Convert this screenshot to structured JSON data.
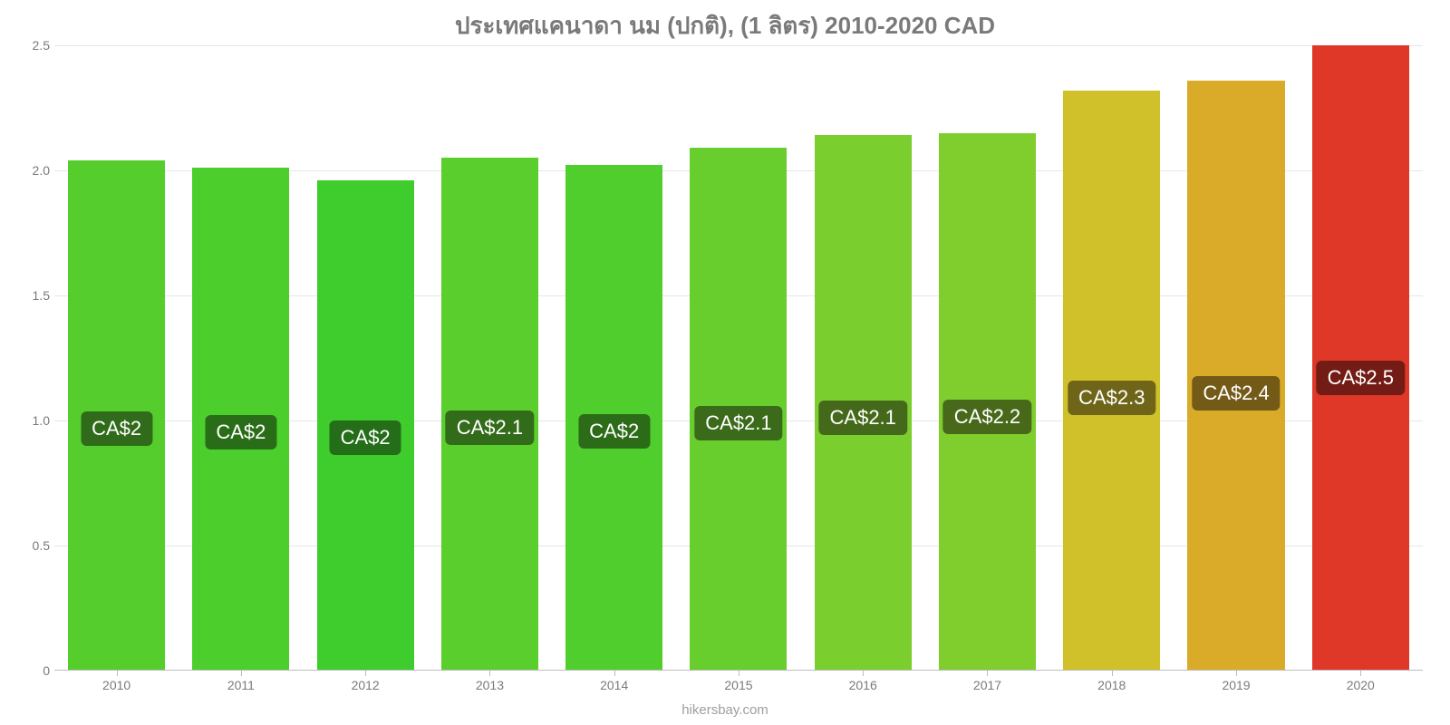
{
  "chart": {
    "type": "bar",
    "title": "ประเทศแคนาดา นม (ปกติ), (1 ลิตร) 2010-2020 CAD",
    "title_color": "#7a7a7a",
    "title_fontsize": 26,
    "background_color": "#ffffff",
    "grid_color": "#e6e6e6",
    "axis_color": "#bdbdbd",
    "tick_color": "#7a7a7a",
    "y": {
      "min": 0,
      "max": 2.5,
      "ticks": [
        0,
        0.5,
        1.0,
        1.5,
        2.0,
        2.5
      ],
      "labels": [
        "0",
        "0.5",
        "1.0",
        "1.5",
        "2.0",
        "2.5"
      ]
    },
    "label_fontsize": 22,
    "bars": [
      {
        "x": "2010",
        "value": 2.04,
        "label": "CA$2",
        "color": "#55ce2d",
        "label_bg": "#2f6b1a"
      },
      {
        "x": "2011",
        "value": 2.01,
        "label": "CA$2",
        "color": "#4cce2d",
        "label_bg": "#2a6d19"
      },
      {
        "x": "2012",
        "value": 1.96,
        "label": "CA$2",
        "color": "#3fcc2d",
        "label_bg": "#246d19"
      },
      {
        "x": "2013",
        "value": 2.05,
        "label": "CA$2.1",
        "color": "#5ace2d",
        "label_bg": "#326b1a"
      },
      {
        "x": "2014",
        "value": 2.02,
        "label": "CA$2",
        "color": "#4fce2d",
        "label_bg": "#2c6c19"
      },
      {
        "x": "2015",
        "value": 2.09,
        "label": "CA$2.1",
        "color": "#67ce2d",
        "label_bg": "#3a6a1a"
      },
      {
        "x": "2016",
        "value": 2.14,
        "label": "CA$2.1",
        "color": "#7ace2d",
        "label_bg": "#45691a"
      },
      {
        "x": "2017",
        "value": 2.15,
        "label": "CA$2.2",
        "color": "#7fce2d",
        "label_bg": "#48691a"
      },
      {
        "x": "2018",
        "value": 2.32,
        "label": "CA$2.3",
        "color": "#d0c02a",
        "label_bg": "#6e6518"
      },
      {
        "x": "2019",
        "value": 2.36,
        "label": "CA$2.4",
        "color": "#d9ab28",
        "label_bg": "#735a17"
      },
      {
        "x": "2020",
        "value": 2.5,
        "label": "CA$2.5",
        "color": "#df3728",
        "label_bg": "#731c15"
      }
    ],
    "watermark": "hikersbay.com",
    "watermark_fontsize": 15
  }
}
